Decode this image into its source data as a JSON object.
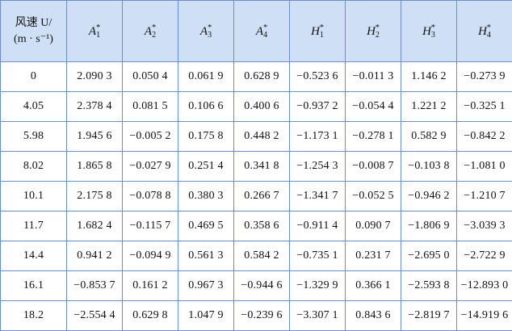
{
  "table": {
    "wind_header_line1": "风速 U/",
    "wind_header_line2": "(m · s⁻¹)",
    "columns": [
      {
        "base": "A",
        "sub": "1",
        "sup": "*"
      },
      {
        "base": "A",
        "sub": "2",
        "sup": "*"
      },
      {
        "base": "A",
        "sub": "3",
        "sup": "*"
      },
      {
        "base": "A",
        "sub": "4",
        "sup": "*"
      },
      {
        "base": "H",
        "sub": "1",
        "sup": "*"
      },
      {
        "base": "H",
        "sub": "2",
        "sup": "*"
      },
      {
        "base": "H",
        "sub": "3",
        "sup": "*"
      },
      {
        "base": "H",
        "sub": "4",
        "sup": "*"
      }
    ],
    "rows": [
      {
        "u": "0",
        "values": [
          "2.090 3",
          "0.050 4",
          "0.061 9",
          "0.628 9",
          "−0.523 6",
          "−0.011 3",
          "1.146 2",
          "−0.273 9"
        ]
      },
      {
        "u": "4.05",
        "values": [
          "2.378 4",
          "0.081 5",
          "0.106 6",
          "0.400 6",
          "−0.937 2",
          "−0.054 4",
          "1.221 2",
          "−0.325 1"
        ]
      },
      {
        "u": "5.98",
        "values": [
          "1.945 6",
          "−0.005 2",
          "0.175 8",
          "0.448 2",
          "−1.173 1",
          "−0.278 1",
          "0.582 9",
          "−0.842 2"
        ]
      },
      {
        "u": "8.02",
        "values": [
          "1.865 8",
          "−0.027 9",
          "0.251 4",
          "0.341 8",
          "−1.254 3",
          "−0.008 7",
          "−0.103 8",
          "−1.081 0"
        ]
      },
      {
        "u": "10.1",
        "values": [
          "2.175 8",
          "−0.078 8",
          "0.380 3",
          "0.266 7",
          "−1.341 7",
          "−0.052 5",
          "−0.946 2",
          "−1.210 7"
        ]
      },
      {
        "u": "11.7",
        "values": [
          "1.682 4",
          "−0.115 7",
          "0.469 5",
          "0.358 6",
          "−0.911 4",
          "0.090 7",
          "−1.806 9",
          "−3.039 3"
        ]
      },
      {
        "u": "14.4",
        "values": [
          "0.941 2",
          "−0.094 9",
          "0.561 3",
          "0.584 2",
          "−0.735 1",
          "0.231 7",
          "−2.695 0",
          "−2.722 9"
        ]
      },
      {
        "u": "16.1",
        "values": [
          "−0.853 7",
          "0.161 2",
          "0.967 3",
          "−0.944 6",
          "−1.329 9",
          "0.366 1",
          "−2.593 8",
          "−12.893 0"
        ]
      },
      {
        "u": "18.2",
        "values": [
          "−2.554 4",
          "0.629 8",
          "1.047 9",
          "−0.239 6",
          "−3.307 1",
          "0.843 6",
          "−2.819 7",
          "−14.919 6"
        ]
      }
    ]
  }
}
